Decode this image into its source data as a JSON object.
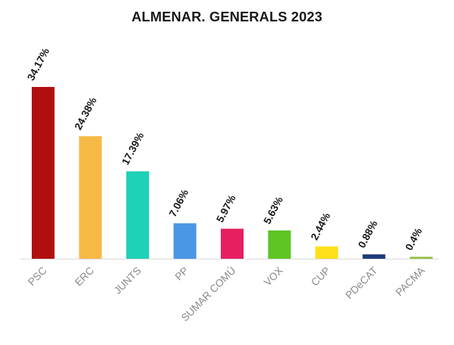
{
  "chart_data": {
    "type": "bar",
    "title": "ALMENAR. GENERALS 2023",
    "xlabel": "",
    "ylabel": "",
    "ylim": [
      0,
      34.17
    ],
    "grid": false,
    "legend": "none",
    "categories": [
      "PSC",
      "ERC",
      "JUNTS",
      "PP",
      "SUMAR COMÚ",
      "VOX",
      "CUP",
      "PDeCAT",
      "PACMA"
    ],
    "values": [
      34.17,
      24.38,
      17.39,
      7.06,
      5.97,
      5.63,
      2.44,
      0.88,
      0.4
    ],
    "value_labels": [
      "34.17%",
      "24.38%",
      "17.39%",
      "7.06%",
      "5.97%",
      "5.63%",
      "2.44%",
      "0.88%",
      "0.4%"
    ],
    "colors": [
      "#b10f0f",
      "#f6b945",
      "#1fd1b6",
      "#4a97e6",
      "#e61f5e",
      "#5dc524",
      "#ffe01a",
      "#1f3a7a",
      "#96c14a"
    ]
  }
}
